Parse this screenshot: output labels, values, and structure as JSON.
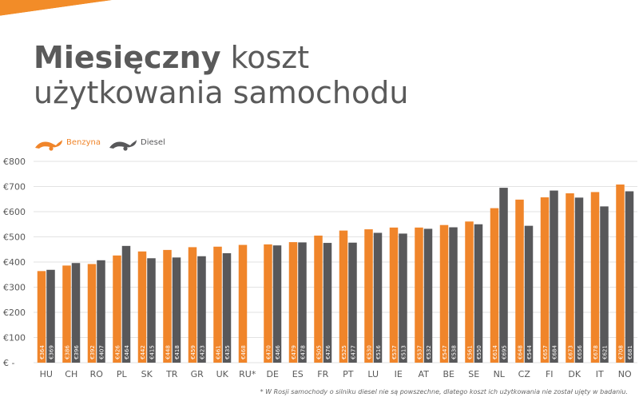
{
  "colors": {
    "benzyna": "#f0852a",
    "diesel": "#58585a",
    "stripe": "#f28c28",
    "grid": "#e2e2e2",
    "axis_text": "#595959",
    "title": "#5a5a5a"
  },
  "header": {
    "title_bold": "Miesięczny",
    "title_rest_line1": "koszt",
    "title_line2": "użytkowania samochodu"
  },
  "legend": {
    "benzyna_label": "Benzyna",
    "diesel_label": "Diesel",
    "benzyna_icon": "fuel-drop-orange-icon",
    "diesel_icon": "fuel-drop-gray-icon"
  },
  "footnote": "* W Rosji samochody o silniku diesel nie są powszechne, dlatego koszt ich użytkowania nie został ujęty w badaniu.",
  "chart_data": {
    "type": "bar",
    "categories": [
      "HU",
      "CH",
      "RO",
      "PL",
      "SK",
      "TR",
      "GR",
      "UK",
      "RU*",
      "DE",
      "ES",
      "FR",
      "PT",
      "LU",
      "IE",
      "AT",
      "BE",
      "SE",
      "NL",
      "CZ",
      "FI",
      "DK",
      "IT",
      "NO"
    ],
    "series": [
      {
        "name": "Benzyna",
        "values": [
          364,
          386,
          392,
          426,
          442,
          448,
          459,
          461,
          468,
          470,
          479,
          505,
          525,
          530,
          537,
          537,
          547,
          561,
          614,
          648,
          657,
          673,
          678,
          708
        ],
        "labels": [
          "€364",
          "€386",
          "€392",
          "€426",
          "€442",
          "€448",
          "€459",
          "€461",
          "€468",
          "€470",
          "€479",
          "€505",
          "€525",
          "€530",
          "€537",
          "€537",
          "€547",
          "€561",
          "€614",
          "€648",
          "€657",
          "€673",
          "€678",
          "€708"
        ]
      },
      {
        "name": "Diesel",
        "values": [
          369,
          396,
          407,
          464,
          415,
          418,
          423,
          435,
          null,
          466,
          478,
          476,
          477,
          516,
          513,
          532,
          538,
          550,
          695,
          544,
          684,
          656,
          621,
          681
        ],
        "labels": [
          "€369",
          "€396",
          "€407",
          "€464",
          "€415",
          "€418",
          "€423",
          "€435",
          "",
          "€466",
          "€478",
          "€476",
          "€477",
          "€516",
          "€513",
          "€532",
          "€538",
          "€550",
          "€695",
          "€544",
          "€684",
          "€656",
          "€621",
          "€681"
        ]
      }
    ],
    "ylim": [
      0,
      800
    ],
    "yticks": [
      0,
      100,
      200,
      300,
      400,
      500,
      600,
      700,
      800
    ],
    "ytick_labels": [
      "€ -",
      "€100",
      "€200",
      "€300",
      "€400",
      "€500",
      "€600",
      "€700",
      "€800"
    ],
    "grid": true,
    "legend_position": "top-left",
    "xlabel": "",
    "ylabel": ""
  }
}
